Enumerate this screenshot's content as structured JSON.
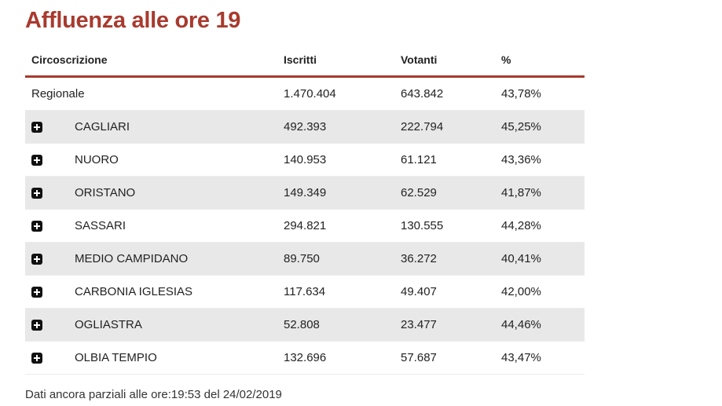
{
  "title": "Affluenza alle ore 19",
  "table": {
    "headers": {
      "name": "Circoscrizione",
      "iscritti": "Iscritti",
      "votanti": "Votanti",
      "percent": "%"
    },
    "rows": [
      {
        "name": "Regionale",
        "iscritti": "1.470.404",
        "votanti": "643.842",
        "percent": "43,78%",
        "expandable": false
      },
      {
        "name": "CAGLIARI",
        "iscritti": "492.393",
        "votanti": "222.794",
        "percent": "45,25%",
        "expandable": true
      },
      {
        "name": "NUORO",
        "iscritti": "140.953",
        "votanti": "61.121",
        "percent": "43,36%",
        "expandable": true
      },
      {
        "name": "ORISTANO",
        "iscritti": "149.349",
        "votanti": "62.529",
        "percent": "41,87%",
        "expandable": true
      },
      {
        "name": "SASSARI",
        "iscritti": "294.821",
        "votanti": "130.555",
        "percent": "44,28%",
        "expandable": true
      },
      {
        "name": "MEDIO CAMPIDANO",
        "iscritti": "89.750",
        "votanti": "36.272",
        "percent": "40,41%",
        "expandable": true
      },
      {
        "name": "CARBONIA IGLESIAS",
        "iscritti": "117.634",
        "votanti": "49.407",
        "percent": "42,00%",
        "expandable": true
      },
      {
        "name": "OGLIASTRA",
        "iscritti": "52.808",
        "votanti": "23.477",
        "percent": "44,46%",
        "expandable": true
      },
      {
        "name": "OLBIA TEMPIO",
        "iscritti": "132.696",
        "votanti": "57.687",
        "percent": "43,47%",
        "expandable": true
      }
    ]
  },
  "icons": {
    "expand": "plus-square-icon"
  },
  "colors": {
    "accent": "#a83a2e",
    "stripe": "#e8e8e8"
  },
  "footnote": "Dati ancora parziali alle ore:19:53 del 24/02/2019"
}
